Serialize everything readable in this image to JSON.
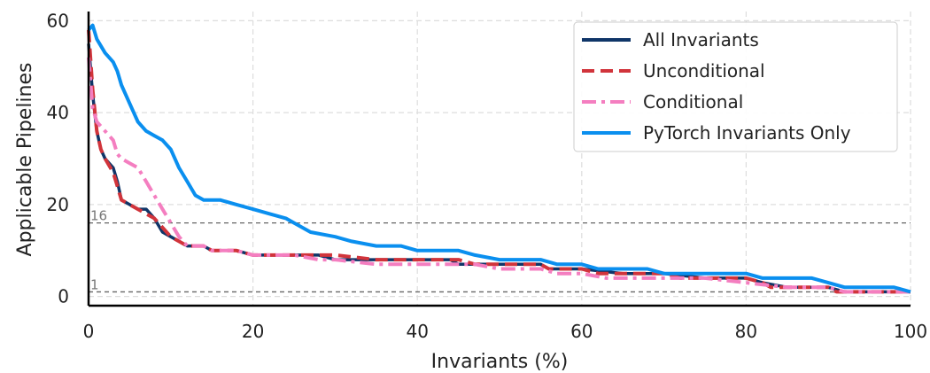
{
  "chart_data": {
    "type": "line",
    "xlabel": "Invariants (%)",
    "ylabel": "Applicable Pipelines",
    "xlim": [
      0,
      100
    ],
    "ylim": [
      -2,
      62
    ],
    "xticks": [
      "0",
      "20",
      "40",
      "60",
      "80",
      "100"
    ],
    "yticks": [
      "0",
      "20",
      "40",
      "60"
    ],
    "grid": true,
    "legend_position": "top-right",
    "reference_lines": [
      {
        "y": 16,
        "label": "16"
      },
      {
        "y": 1,
        "label": "1"
      }
    ],
    "series": [
      {
        "name": "All Invariants",
        "color": "#0f3568",
        "style": "solid",
        "points": [
          [
            0,
            55
          ],
          [
            0.5,
            44
          ],
          [
            1,
            36
          ],
          [
            1.5,
            32
          ],
          [
            2,
            30
          ],
          [
            3,
            28
          ],
          [
            3.5,
            25
          ],
          [
            4,
            21
          ],
          [
            5,
            20
          ],
          [
            6,
            19
          ],
          [
            7,
            19
          ],
          [
            8,
            17
          ],
          [
            9,
            14
          ],
          [
            10,
            13
          ],
          [
            11,
            12
          ],
          [
            12,
            11
          ],
          [
            14,
            11
          ],
          [
            15,
            10
          ],
          [
            18,
            10
          ],
          [
            20,
            9
          ],
          [
            25,
            9
          ],
          [
            28,
            9
          ],
          [
            30,
            8
          ],
          [
            35,
            8
          ],
          [
            40,
            8
          ],
          [
            44,
            8
          ],
          [
            45,
            7
          ],
          [
            50,
            7
          ],
          [
            55,
            7
          ],
          [
            56,
            6
          ],
          [
            60,
            6
          ],
          [
            65,
            5
          ],
          [
            70,
            5
          ],
          [
            75,
            4
          ],
          [
            80,
            4
          ],
          [
            82,
            3
          ],
          [
            85,
            2
          ],
          [
            90,
            2
          ],
          [
            92,
            1
          ],
          [
            100,
            1
          ]
        ]
      },
      {
        "name": "Unconditional",
        "color": "#d1343b",
        "style": "dashed",
        "points": [
          [
            0,
            58
          ],
          [
            0.5,
            45
          ],
          [
            1,
            36
          ],
          [
            1.5,
            32
          ],
          [
            2,
            30
          ],
          [
            3,
            27
          ],
          [
            3.5,
            24
          ],
          [
            4,
            21
          ],
          [
            5,
            20
          ],
          [
            6,
            19
          ],
          [
            7,
            18
          ],
          [
            8,
            17
          ],
          [
            9,
            15
          ],
          [
            10,
            13
          ],
          [
            11,
            12
          ],
          [
            12,
            11
          ],
          [
            14,
            11
          ],
          [
            15,
            10
          ],
          [
            18,
            10
          ],
          [
            20,
            9
          ],
          [
            25,
            9
          ],
          [
            28,
            9
          ],
          [
            30,
            9
          ],
          [
            35,
            8
          ],
          [
            40,
            8
          ],
          [
            45,
            8
          ],
          [
            47,
            7
          ],
          [
            55,
            7
          ],
          [
            56,
            6
          ],
          [
            60,
            6
          ],
          [
            62,
            5
          ],
          [
            70,
            5
          ],
          [
            72,
            4
          ],
          [
            80,
            4
          ],
          [
            82,
            3
          ],
          [
            83,
            2
          ],
          [
            90,
            2
          ],
          [
            91,
            1
          ],
          [
            100,
            1
          ]
        ]
      },
      {
        "name": "Conditional",
        "color": "#f47ec0",
        "style": "dashdot",
        "points": [
          [
            0,
            52
          ],
          [
            0.5,
            41
          ],
          [
            1,
            38
          ],
          [
            2,
            36
          ],
          [
            3,
            34
          ],
          [
            3.5,
            31
          ],
          [
            4,
            30
          ],
          [
            5,
            29
          ],
          [
            6,
            28
          ],
          [
            7,
            25
          ],
          [
            8,
            22
          ],
          [
            9,
            19
          ],
          [
            10,
            16
          ],
          [
            11,
            13
          ],
          [
            12,
            11
          ],
          [
            14,
            11
          ],
          [
            15,
            10
          ],
          [
            18,
            10
          ],
          [
            20,
            9
          ],
          [
            25,
            9
          ],
          [
            28,
            8
          ],
          [
            30,
            8
          ],
          [
            35,
            7
          ],
          [
            40,
            7
          ],
          [
            45,
            7
          ],
          [
            47,
            7
          ],
          [
            50,
            6
          ],
          [
            55,
            6
          ],
          [
            57,
            5
          ],
          [
            60,
            5
          ],
          [
            63,
            4
          ],
          [
            70,
            4
          ],
          [
            75,
            4
          ],
          [
            80,
            3
          ],
          [
            85,
            2
          ],
          [
            90,
            2
          ],
          [
            92,
            1
          ],
          [
            100,
            1
          ]
        ]
      },
      {
        "name": "PyTorch Invariants Only",
        "color": "#0a8fef",
        "style": "solid",
        "points": [
          [
            0,
            58
          ],
          [
            0.5,
            59
          ],
          [
            1,
            56
          ],
          [
            2,
            53
          ],
          [
            3,
            51
          ],
          [
            3.5,
            49
          ],
          [
            4,
            46
          ],
          [
            5,
            42
          ],
          [
            6,
            38
          ],
          [
            7,
            36
          ],
          [
            8,
            35
          ],
          [
            9,
            34
          ],
          [
            10,
            32
          ],
          [
            11,
            28
          ],
          [
            12,
            25
          ],
          [
            13,
            22
          ],
          [
            14,
            21
          ],
          [
            16,
            21
          ],
          [
            18,
            20
          ],
          [
            20,
            19
          ],
          [
            22,
            18
          ],
          [
            24,
            17
          ],
          [
            25,
            16
          ],
          [
            27,
            14
          ],
          [
            30,
            13
          ],
          [
            32,
            12
          ],
          [
            35,
            11
          ],
          [
            38,
            11
          ],
          [
            40,
            10
          ],
          [
            45,
            10
          ],
          [
            47,
            9
          ],
          [
            50,
            8
          ],
          [
            55,
            8
          ],
          [
            57,
            7
          ],
          [
            60,
            7
          ],
          [
            62,
            6
          ],
          [
            68,
            6
          ],
          [
            70,
            5
          ],
          [
            80,
            5
          ],
          [
            82,
            4
          ],
          [
            85,
            4
          ],
          [
            88,
            4
          ],
          [
            90,
            3
          ],
          [
            92,
            2
          ],
          [
            95,
            2
          ],
          [
            98,
            2
          ],
          [
            100,
            1
          ]
        ]
      }
    ]
  }
}
